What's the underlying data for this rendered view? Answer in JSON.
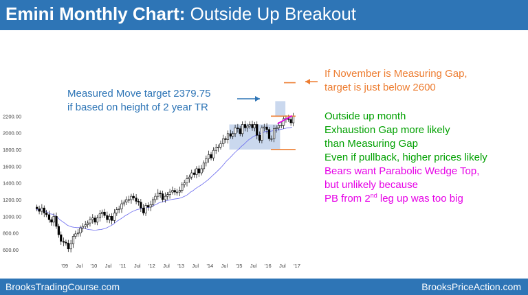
{
  "title": {
    "bold": "Emini Monthly Chart:",
    "rest": "Outside Up Breakout"
  },
  "footer": {
    "left": "BrooksTradingCourse.com",
    "right": "BrooksPriceAction.com"
  },
  "annotations": {
    "measured_move": [
      "Measured Move target 2379.75",
      "if based on height of 2 year TR"
    ],
    "measuring_gap": [
      "If November is Measuring Gap,",
      "target is just below 2600"
    ],
    "green": [
      "Outside up month",
      "Exhaustion Gap more likely",
      "than Measuring Gap",
      "Even if pullback, higher prices likely"
    ],
    "magenta": [
      "Bears want Parabolic Wedge Top,",
      "but unlikely because"
    ],
    "magenta_last": {
      "pre": "PB from 2",
      "sup": "nd",
      "post": " leg up was too big"
    }
  },
  "colors": {
    "title_bar": "#2e75b6",
    "green_text": "#00a000",
    "orange": "#ed7d31",
    "magenta": "#e600e6",
    "box_fill": "#b4c7e7",
    "ma_line": "#6666ee"
  },
  "chart_data": {
    "type": "candlestick",
    "timeframe": "monthly",
    "ylim": [
      500,
      2400
    ],
    "y_ticks": [
      "2200.00",
      "2000.00",
      "1800.00",
      "1600.00",
      "1400.00",
      "1200.00",
      "1000.00",
      "800.00",
      "600.00"
    ],
    "x_ticks": [
      "'09",
      "Jul",
      "'10",
      "Jul",
      "'11",
      "Jul",
      "'12",
      "Jul",
      "'13",
      "Jul",
      "'14",
      "Jul",
      "'15",
      "Jul",
      "'16",
      "Jul",
      "'17"
    ],
    "trading_range": {
      "start": "2014-09",
      "end": "2016-06",
      "low": 1800,
      "high": 2100
    },
    "levels": {
      "range_high": 2200,
      "range_low": 1800,
      "measuring_gap_target": 2600
    },
    "measured_move_target": 2379.75,
    "wedge_line": {
      "from": [
        2016.33,
        2110
      ],
      "to": [
        2016.83,
        2205
      ]
    },
    "closes": [
      [
        2008.0,
        1090
      ],
      [
        2008.08,
        1060
      ],
      [
        2008.17,
        1100
      ],
      [
        2008.25,
        1040
      ],
      [
        2008.33,
        1020
      ],
      [
        2008.42,
        960
      ],
      [
        2008.5,
        930
      ],
      [
        2008.58,
        1000
      ],
      [
        2008.67,
        880
      ],
      [
        2008.75,
        780
      ],
      [
        2008.83,
        700
      ],
      [
        2008.92,
        690
      ],
      [
        2009.0,
        680
      ],
      [
        2009.08,
        610
      ],
      [
        2009.17,
        670
      ],
      [
        2009.25,
        760
      ],
      [
        2009.33,
        790
      ],
      [
        2009.42,
        800
      ],
      [
        2009.5,
        860
      ],
      [
        2009.58,
        880
      ],
      [
        2009.67,
        900
      ],
      [
        2009.75,
        920
      ],
      [
        2009.83,
        960
      ],
      [
        2009.92,
        980
      ],
      [
        2010.0,
        930
      ],
      [
        2010.08,
        980
      ],
      [
        2010.17,
        1030
      ],
      [
        2010.25,
        1050
      ],
      [
        2010.33,
        1010
      ],
      [
        2010.42,
        960
      ],
      [
        2010.5,
        1000
      ],
      [
        2010.58,
        950
      ],
      [
        2010.67,
        1040
      ],
      [
        2010.75,
        1080
      ],
      [
        2010.83,
        1090
      ],
      [
        2010.92,
        1150
      ],
      [
        2011.0,
        1170
      ],
      [
        2011.08,
        1200
      ],
      [
        2011.17,
        1200
      ],
      [
        2011.25,
        1240
      ],
      [
        2011.33,
        1220
      ],
      [
        2011.42,
        1180
      ],
      [
        2011.5,
        1170
      ],
      [
        2011.58,
        1100
      ],
      [
        2011.67,
        1040
      ],
      [
        2011.75,
        1130
      ],
      [
        2011.83,
        1110
      ],
      [
        2011.92,
        1140
      ],
      [
        2012.0,
        1200
      ],
      [
        2012.08,
        1240
      ],
      [
        2012.17,
        1280
      ],
      [
        2012.25,
        1270
      ],
      [
        2012.33,
        1200
      ],
      [
        2012.42,
        1240
      ],
      [
        2012.5,
        1260
      ],
      [
        2012.58,
        1290
      ],
      [
        2012.67,
        1310
      ],
      [
        2012.75,
        1290
      ],
      [
        2012.83,
        1290
      ],
      [
        2012.92,
        1310
      ],
      [
        2013.0,
        1380
      ],
      [
        2013.08,
        1400
      ],
      [
        2013.17,
        1450
      ],
      [
        2013.25,
        1470
      ],
      [
        2013.33,
        1520
      ],
      [
        2013.42,
        1500
      ],
      [
        2013.5,
        1570
      ],
      [
        2013.58,
        1520
      ],
      [
        2013.67,
        1570
      ],
      [
        2013.75,
        1640
      ],
      [
        2013.83,
        1690
      ],
      [
        2013.92,
        1740
      ],
      [
        2014.0,
        1700
      ],
      [
        2014.08,
        1790
      ],
      [
        2014.17,
        1820
      ],
      [
        2014.25,
        1830
      ],
      [
        2014.33,
        1870
      ],
      [
        2014.42,
        1930
      ],
      [
        2014.5,
        1920
      ],
      [
        2014.58,
        1990
      ],
      [
        2014.67,
        1960
      ],
      [
        2014.75,
        1990
      ],
      [
        2014.83,
        2060
      ],
      [
        2014.92,
        2050
      ],
      [
        2015.0,
        1990
      ],
      [
        2015.08,
        2100
      ],
      [
        2015.17,
        2060
      ],
      [
        2015.25,
        2080
      ],
      [
        2015.33,
        2100
      ],
      [
        2015.42,
        2060
      ],
      [
        2015.5,
        2100
      ],
      [
        2015.58,
        1970
      ],
      [
        2015.67,
        1910
      ],
      [
        2015.75,
        2060
      ],
      [
        2015.83,
        2070
      ],
      [
        2015.92,
        2040
      ],
      [
        2016.0,
        1930
      ],
      [
        2016.08,
        1930
      ],
      [
        2016.17,
        2050
      ],
      [
        2016.25,
        2060
      ],
      [
        2016.33,
        2090
      ],
      [
        2016.42,
        2090
      ],
      [
        2016.5,
        2170
      ],
      [
        2016.58,
        2170
      ],
      [
        2016.67,
        2160
      ],
      [
        2016.75,
        2120
      ],
      [
        2016.83,
        2200
      ]
    ]
  }
}
